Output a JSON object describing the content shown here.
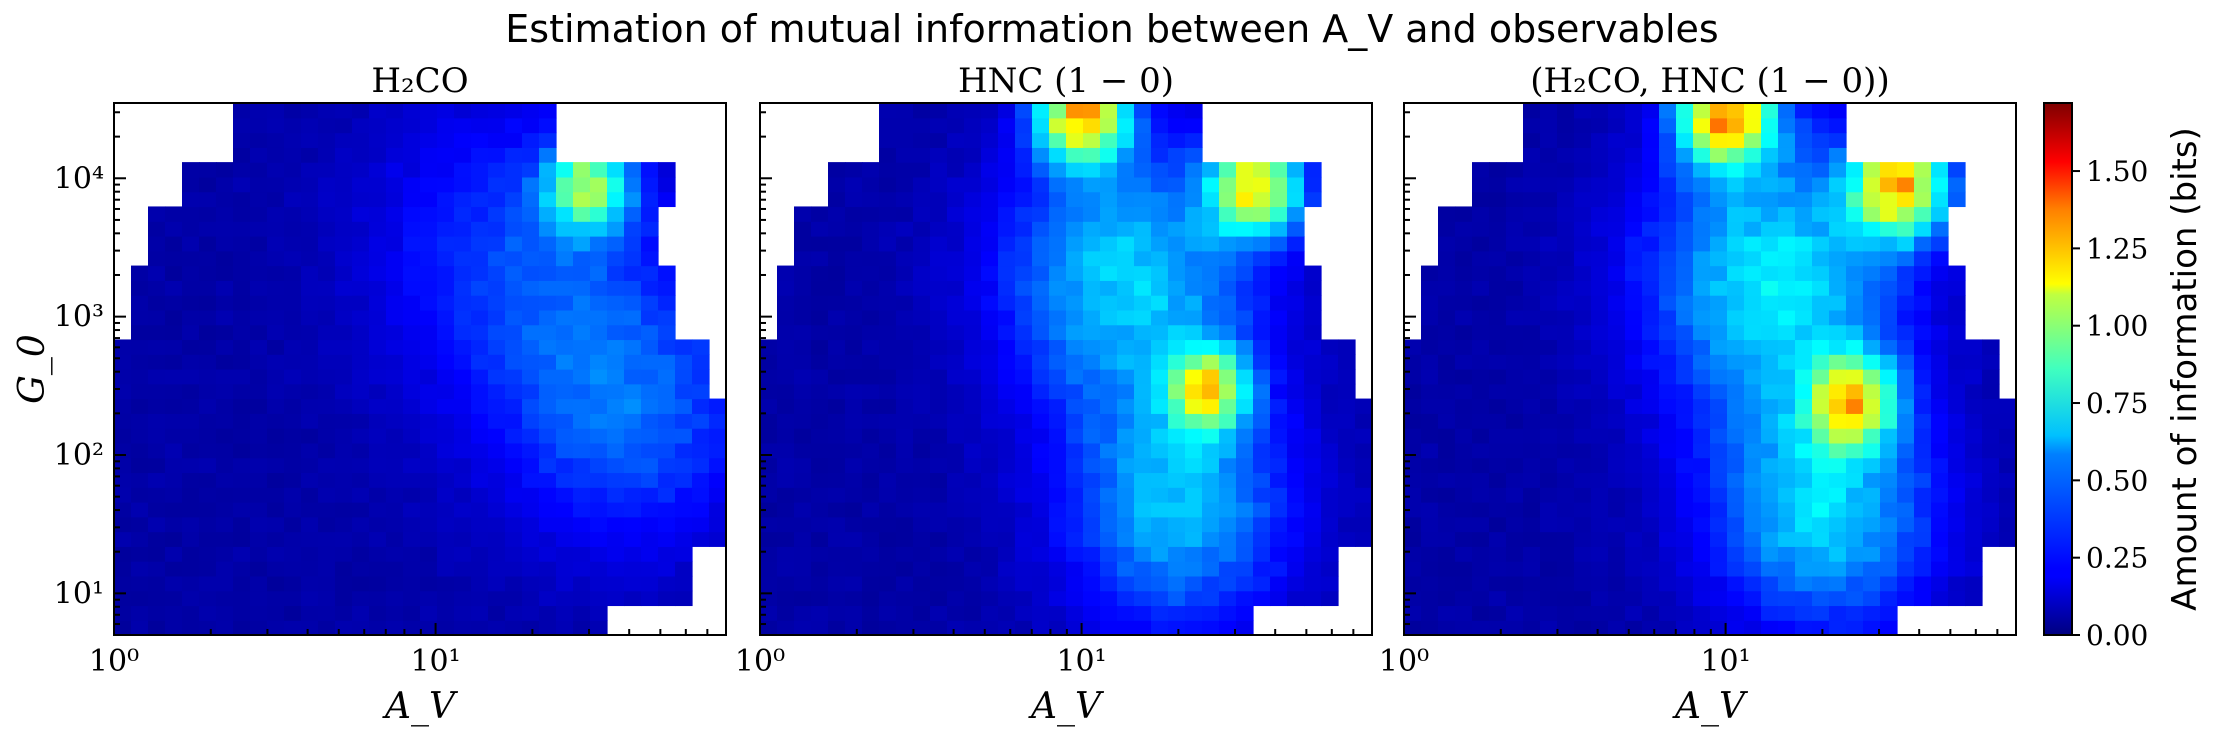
{
  "figure": {
    "suptitle": "Estimation of mutual information between A_V and observables",
    "colorbar": {
      "label": "Amount of information (bits)",
      "ticks": [
        "0.00",
        "0.25",
        "0.50",
        "0.75",
        "1.00",
        "1.25",
        "1.50"
      ],
      "colormap": "jet",
      "vmin": 0.0,
      "vmax": 1.72
    }
  },
  "chart_data": [
    {
      "type": "heatmap",
      "title": "H₂CO",
      "xlabel": "A_V",
      "ylabel": "G_0",
      "xscale": "log",
      "yscale": "log",
      "xlim": [
        1,
        80
      ],
      "ylim": [
        5,
        35000
      ],
      "xticks": [
        {
          "value": 1,
          "label": "10⁰"
        },
        {
          "value": 10,
          "label": "10¹"
        }
      ],
      "yticks": [
        {
          "value": 10,
          "label": "10¹"
        },
        {
          "value": 100,
          "label": "10²"
        },
        {
          "value": 1000,
          "label": "10³"
        },
        {
          "value": 10000,
          "label": "10⁴"
        }
      ],
      "hotspots": [
        {
          "A_V": 30,
          "G_0": 9000,
          "value": 0.7,
          "spread": 0.13
        },
        {
          "A_V": 40,
          "G_0": 200,
          "value": 0.3,
          "spread": 0.4
        },
        {
          "A_V": 18,
          "G_0": 3000,
          "value": 0.25,
          "spread": 0.45
        }
      ]
    },
    {
      "type": "heatmap",
      "title": "HNC (1 − 0)",
      "xlabel": "A_V",
      "xscale": "log",
      "yscale": "log",
      "xlim": [
        1,
        80
      ],
      "ylim": [
        5,
        35000
      ],
      "xticks": [
        {
          "value": 1,
          "label": "10⁰"
        },
        {
          "value": 10,
          "label": "10¹"
        }
      ],
      "hotspots": [
        {
          "A_V": 10,
          "G_0": 30000,
          "value": 1.05,
          "spread": 0.14
        },
        {
          "A_V": 35,
          "G_0": 9000,
          "value": 0.95,
          "spread": 0.14
        },
        {
          "A_V": 25,
          "G_0": 300,
          "value": 0.78,
          "spread": 0.12
        },
        {
          "A_V": 20,
          "G_0": 40,
          "value": 0.45,
          "spread": 0.35
        },
        {
          "A_V": 14,
          "G_0": 2000,
          "value": 0.5,
          "spread": 0.4
        }
      ]
    },
    {
      "type": "heatmap",
      "title": "(H₂CO, HNC (1 − 0))",
      "xlabel": "A_V",
      "xscale": "log",
      "yscale": "log",
      "xlim": [
        1,
        80
      ],
      "ylim": [
        5,
        35000
      ],
      "xticks": [
        {
          "value": 1,
          "label": "10⁰"
        },
        {
          "value": 10,
          "label": "10¹"
        }
      ],
      "hotspots": [
        {
          "A_V": 10,
          "G_0": 30000,
          "value": 1.12,
          "spread": 0.15
        },
        {
          "A_V": 35,
          "G_0": 9000,
          "value": 1.0,
          "spread": 0.15
        },
        {
          "A_V": 25,
          "G_0": 250,
          "value": 0.82,
          "spread": 0.13
        },
        {
          "A_V": 20,
          "G_0": 40,
          "value": 0.5,
          "spread": 0.35
        },
        {
          "A_V": 14,
          "G_0": 2000,
          "value": 0.55,
          "spread": 0.4
        }
      ]
    }
  ]
}
